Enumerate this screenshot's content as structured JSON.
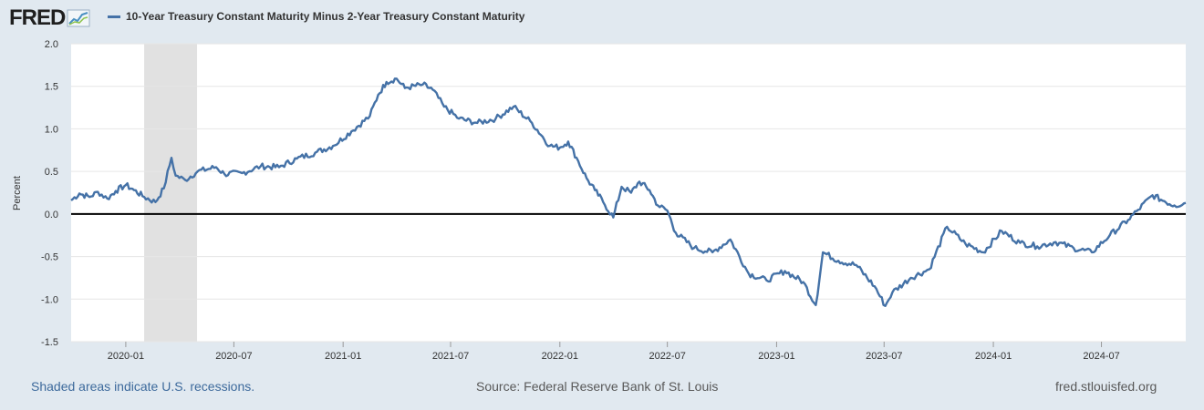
{
  "header": {
    "logo_text": "FRED",
    "legend_label": "10-Year Treasury Constant Maturity Minus 2-Year Treasury Constant Maturity"
  },
  "footer": {
    "recession_note": "Shaded areas indicate U.S. recessions.",
    "source": "Source: Federal Reserve Bank of St. Louis",
    "url": "fred.stlouisfed.org"
  },
  "colors": {
    "line": "#4572a7",
    "zero_line": "#000000",
    "recession": "#e1e1e1",
    "plot_bg": "#ffffff",
    "page_bg": "#e1e9f0"
  },
  "chart_data": {
    "type": "line",
    "title": "",
    "xlabel": "",
    "ylabel": "Percent",
    "x_range": [
      "2019-10-01",
      "2024-11-20"
    ],
    "ylim": [
      -1.5,
      2.0
    ],
    "y_ticks": [
      "2.0",
      "1.5",
      "1.0",
      "0.5",
      "0.0",
      "-0.5",
      "-1.0",
      "-1.5"
    ],
    "x_ticks": [
      "2020-01",
      "2020-07",
      "2021-01",
      "2021-07",
      "2022-01",
      "2022-07",
      "2023-01",
      "2023-07",
      "2024-01",
      "2024-07"
    ],
    "grid": "horizontal",
    "reference_line": 0,
    "recessions": [
      [
        "2020-02-01",
        "2020-04-30"
      ]
    ],
    "series": [
      {
        "name": "10-Year Treasury Constant Maturity Minus 2-Year Treasury Constant Maturity",
        "points": [
          [
            "2019-10-01",
            0.16
          ],
          [
            "2019-10-15",
            0.24
          ],
          [
            "2019-11-01",
            0.2
          ],
          [
            "2019-11-15",
            0.26
          ],
          [
            "2019-12-01",
            0.18
          ],
          [
            "2019-12-15",
            0.27
          ],
          [
            "2020-01-01",
            0.34
          ],
          [
            "2020-01-15",
            0.28
          ],
          [
            "2020-02-01",
            0.2
          ],
          [
            "2020-02-20",
            0.14
          ],
          [
            "2020-03-05",
            0.3
          ],
          [
            "2020-03-18",
            0.66
          ],
          [
            "2020-03-25",
            0.45
          ],
          [
            "2020-04-10",
            0.4
          ],
          [
            "2020-05-01",
            0.5
          ],
          [
            "2020-06-01",
            0.55
          ],
          [
            "2020-06-15",
            0.47
          ],
          [
            "2020-07-15",
            0.48
          ],
          [
            "2020-08-15",
            0.56
          ],
          [
            "2020-09-15",
            0.55
          ],
          [
            "2020-10-15",
            0.65
          ],
          [
            "2020-11-15",
            0.72
          ],
          [
            "2020-12-15",
            0.8
          ],
          [
            "2021-01-15",
            0.97
          ],
          [
            "2021-02-15",
            1.15
          ],
          [
            "2021-03-01",
            1.4
          ],
          [
            "2021-03-15",
            1.55
          ],
          [
            "2021-04-01",
            1.59
          ],
          [
            "2021-04-15",
            1.48
          ],
          [
            "2021-05-15",
            1.52
          ],
          [
            "2021-06-01",
            1.46
          ],
          [
            "2021-06-20",
            1.26
          ],
          [
            "2021-07-15",
            1.12
          ],
          [
            "2021-08-15",
            1.07
          ],
          [
            "2021-09-15",
            1.12
          ],
          [
            "2021-10-15",
            1.26
          ],
          [
            "2021-11-15",
            1.07
          ],
          [
            "2021-12-15",
            0.8
          ],
          [
            "2022-01-01",
            0.78
          ],
          [
            "2022-01-15",
            0.85
          ],
          [
            "2022-02-01",
            0.62
          ],
          [
            "2022-02-15",
            0.42
          ],
          [
            "2022-03-01",
            0.28
          ],
          [
            "2022-03-15",
            0.14
          ],
          [
            "2022-04-01",
            -0.04
          ],
          [
            "2022-04-15",
            0.32
          ],
          [
            "2022-05-01",
            0.25
          ],
          [
            "2022-05-15",
            0.38
          ],
          [
            "2022-06-01",
            0.28
          ],
          [
            "2022-06-15",
            0.1
          ],
          [
            "2022-07-01",
            0.04
          ],
          [
            "2022-07-15",
            -0.22
          ],
          [
            "2022-08-15",
            -0.4
          ],
          [
            "2022-09-15",
            -0.45
          ],
          [
            "2022-10-15",
            -0.3
          ],
          [
            "2022-11-15",
            -0.7
          ],
          [
            "2022-12-15",
            -0.78
          ],
          [
            "2023-01-15",
            -0.67
          ],
          [
            "2023-02-15",
            -0.8
          ],
          [
            "2023-03-08",
            -1.07
          ],
          [
            "2023-03-20",
            -0.45
          ],
          [
            "2023-04-15",
            -0.55
          ],
          [
            "2023-05-15",
            -0.6
          ],
          [
            "2023-06-15",
            -0.85
          ],
          [
            "2023-07-03",
            -1.08
          ],
          [
            "2023-07-15",
            -0.92
          ],
          [
            "2023-08-15",
            -0.75
          ],
          [
            "2023-09-15",
            -0.65
          ],
          [
            "2023-10-15",
            -0.15
          ],
          [
            "2023-11-15",
            -0.35
          ],
          [
            "2023-12-15",
            -0.45
          ],
          [
            "2024-01-15",
            -0.2
          ],
          [
            "2024-02-15",
            -0.34
          ],
          [
            "2024-03-15",
            -0.38
          ],
          [
            "2024-04-15",
            -0.33
          ],
          [
            "2024-05-15",
            -0.4
          ],
          [
            "2024-06-15",
            -0.45
          ],
          [
            "2024-07-15",
            -0.25
          ],
          [
            "2024-08-15",
            -0.07
          ],
          [
            "2024-09-01",
            0.05
          ],
          [
            "2024-09-25",
            0.22
          ],
          [
            "2024-10-15",
            0.15
          ],
          [
            "2024-11-01",
            0.1
          ],
          [
            "2024-11-20",
            0.13
          ]
        ]
      }
    ]
  }
}
